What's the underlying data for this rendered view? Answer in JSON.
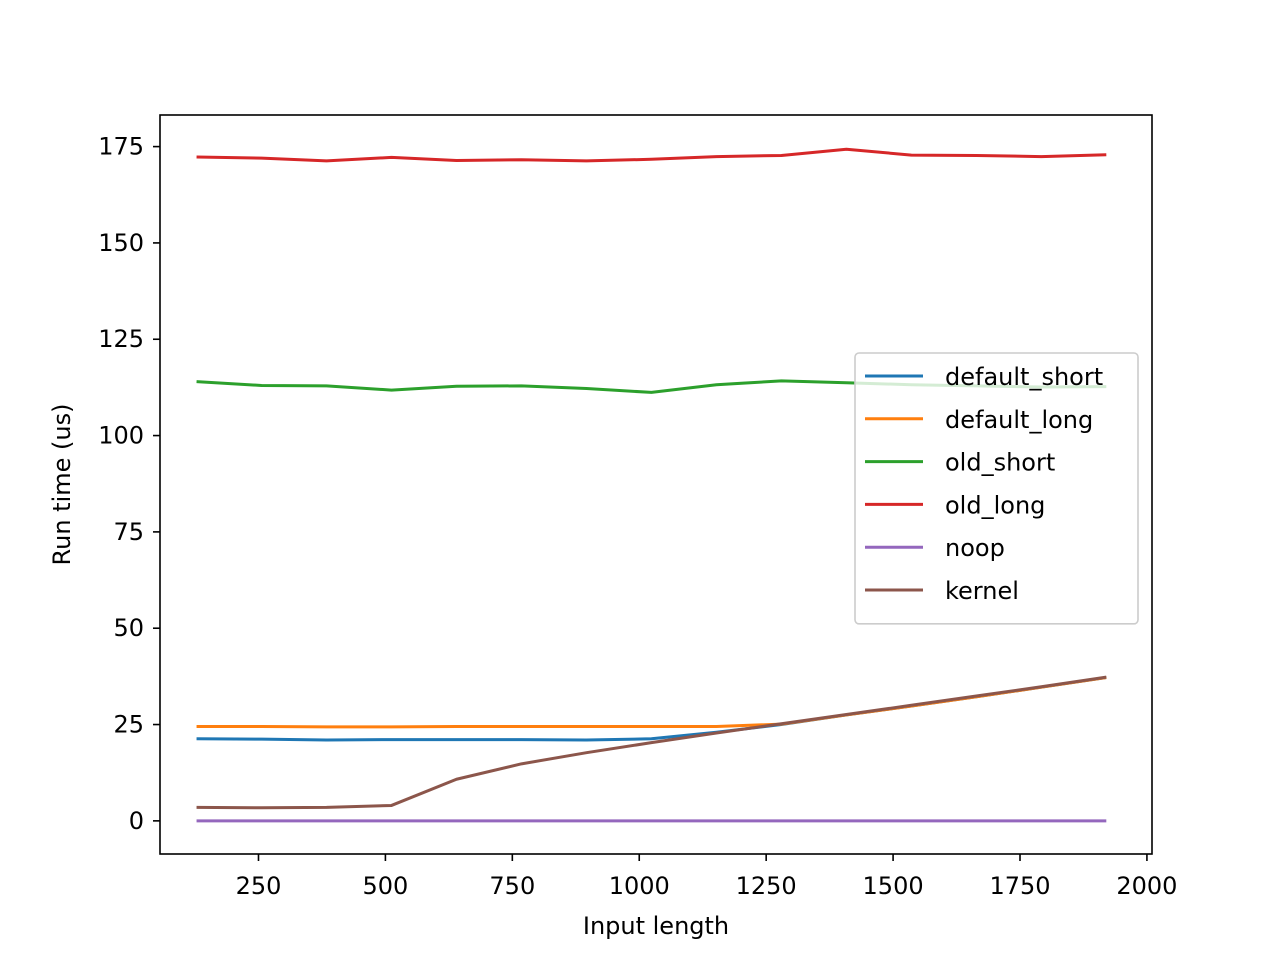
{
  "chart_data": {
    "type": "line",
    "title": "",
    "xlabel": "Input length",
    "ylabel": "Run time (us)",
    "xlim": [
      56,
      2010
    ],
    "ylim": [
      -8.6,
      183.2
    ],
    "x_ticks": [
      250,
      500,
      750,
      1000,
      1250,
      1500,
      1750,
      2000
    ],
    "y_ticks": [
      0,
      25,
      50,
      75,
      100,
      125,
      150,
      175
    ],
    "legend_position": "center-right",
    "grid": false,
    "x": [
      128,
      256,
      384,
      512,
      640,
      768,
      896,
      1024,
      1152,
      1280,
      1408,
      1536,
      1664,
      1792,
      1920
    ],
    "series": [
      {
        "name": "default_short",
        "color": "#1f77b4",
        "values": [
          21.3,
          21.2,
          21.0,
          21.1,
          21.1,
          21.1,
          21.0,
          21.3,
          23.0,
          25.0,
          27.5,
          29.8,
          32.2,
          34.7,
          37.2
        ]
      },
      {
        "name": "default_long",
        "color": "#ff7f0e",
        "values": [
          24.5,
          24.5,
          24.4,
          24.4,
          24.5,
          24.5,
          24.5,
          24.5,
          24.5,
          25.1,
          27.5,
          29.8,
          32.2,
          34.7,
          37.2
        ]
      },
      {
        "name": "old_short",
        "color": "#2ca02c",
        "values": [
          114.0,
          113.0,
          112.9,
          111.8,
          112.8,
          112.9,
          112.2,
          111.2,
          113.2,
          114.2,
          113.7,
          113.2,
          112.9,
          112.6,
          112.7
        ]
      },
      {
        "name": "old_long",
        "color": "#d62728",
        "values": [
          172.3,
          172.0,
          171.3,
          172.2,
          171.4,
          171.6,
          171.3,
          171.7,
          172.4,
          172.7,
          174.3,
          172.8,
          172.7,
          172.4,
          172.9
        ]
      },
      {
        "name": "noop",
        "color": "#9467bd",
        "values": [
          0,
          0,
          0,
          0,
          0,
          0,
          0,
          0,
          0,
          0,
          0,
          0,
          0,
          0,
          0
        ]
      },
      {
        "name": "kernel",
        "color": "#8c564b",
        "values": [
          3.5,
          3.4,
          3.5,
          4.0,
          10.8,
          14.8,
          17.7,
          20.3,
          22.8,
          25.2,
          27.6,
          30.0,
          32.4,
          34.8,
          37.3
        ]
      }
    ]
  }
}
